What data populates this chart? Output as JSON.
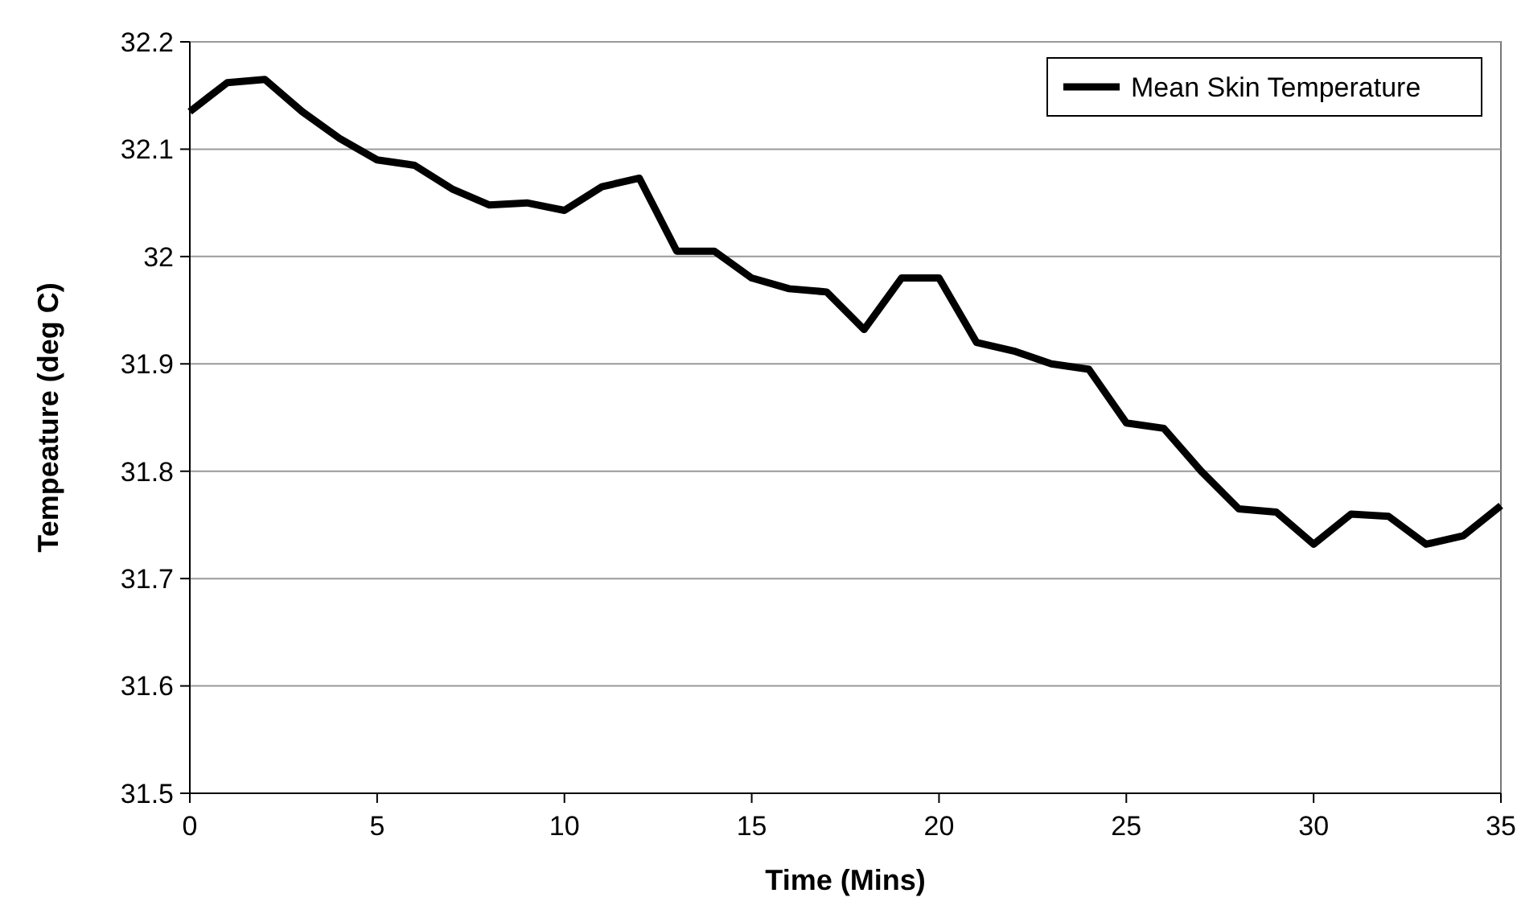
{
  "chart_data": {
    "type": "line",
    "xlabel": "Time (Mins)",
    "ylabel": "Tempeature (deg C)",
    "x": [
      0,
      1,
      2,
      3,
      4,
      5,
      6,
      7,
      8,
      9,
      10,
      11,
      12,
      13,
      14,
      15,
      16,
      17,
      18,
      19,
      20,
      21,
      22,
      23,
      24,
      25,
      26,
      27,
      28,
      29,
      30,
      31,
      32,
      33,
      34,
      35
    ],
    "series": [
      {
        "name": "Mean Skin Temperature",
        "color": "#000000",
        "values": [
          32.135,
          32.162,
          32.165,
          32.135,
          32.11,
          32.09,
          32.085,
          32.063,
          32.048,
          32.05,
          32.043,
          32.065,
          32.073,
          32.005,
          32.005,
          31.98,
          31.97,
          31.967,
          31.932,
          31.98,
          31.98,
          31.92,
          31.912,
          31.9,
          31.895,
          31.845,
          31.84,
          31.8,
          31.765,
          31.762,
          31.732,
          31.76,
          31.758,
          31.732,
          31.74,
          31.768
        ]
      }
    ],
    "xlim": [
      0,
      35
    ],
    "xticks": [
      0,
      5,
      10,
      15,
      20,
      25,
      30,
      35
    ],
    "ylim": [
      31.5,
      32.2
    ],
    "yticks": [
      31.5,
      31.6,
      31.7,
      31.8,
      31.9,
      32,
      32.1,
      32.2
    ],
    "grid": "y",
    "legend": "top right",
    "marker": "none",
    "line_style": "solid"
  }
}
